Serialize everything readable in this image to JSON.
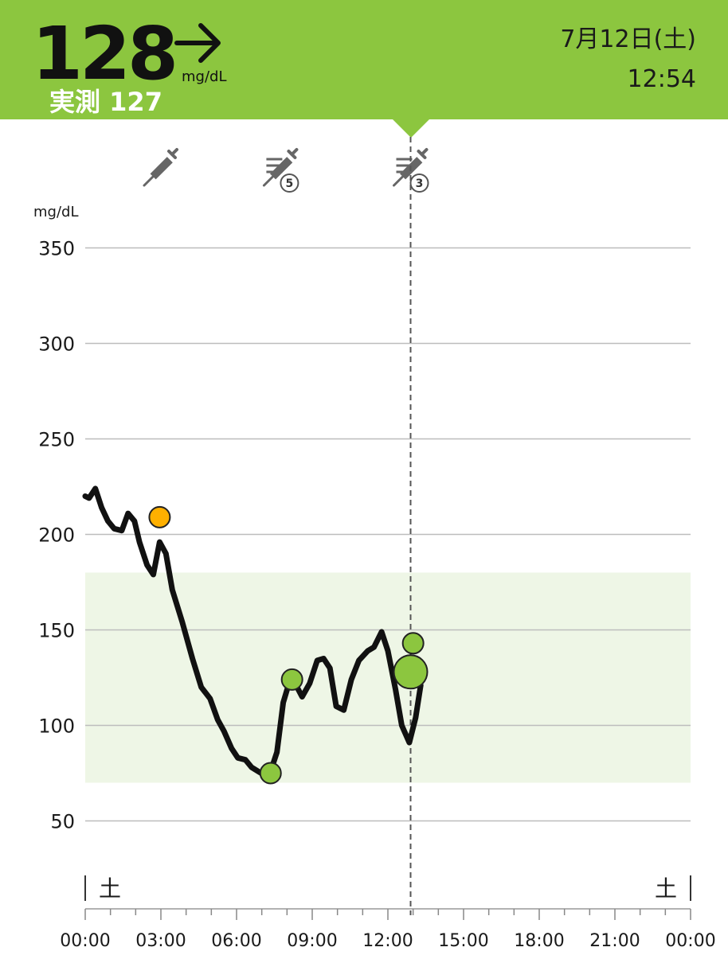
{
  "header": {
    "glucose_value": "128",
    "glucose_unit": "mg/dL",
    "trend_icon": "arrow-right-icon",
    "measured_label": "実測",
    "measured_value": "127",
    "date": "7月12日(土)",
    "time": "12:54",
    "background_color": "#8cc63f"
  },
  "chart_data": {
    "type": "line",
    "ylabel": "mg/dL",
    "ylim": [
      20,
      365
    ],
    "yticks": [
      50,
      100,
      150,
      200,
      250,
      300,
      350
    ],
    "x_ticks": [
      "00:00",
      "03:00",
      "06:00",
      "09:00",
      "12:00",
      "15:00",
      "18:00",
      "21:00",
      "00:00"
    ],
    "x_range_hours": [
      0,
      24
    ],
    "day_labels": {
      "start": "土",
      "end": "土"
    },
    "target_range": [
      70,
      180
    ],
    "target_range_color": "#eef6e6",
    "current_time_hours": 12.9,
    "series": [
      {
        "color": "#111111",
        "points": [
          [
            0.0,
            220
          ],
          [
            0.15,
            219
          ],
          [
            0.4,
            224
          ],
          [
            0.65,
            214
          ],
          [
            0.9,
            207
          ],
          [
            1.15,
            203
          ],
          [
            1.45,
            202
          ],
          [
            1.7,
            211
          ],
          [
            1.95,
            207
          ],
          [
            2.15,
            196
          ],
          [
            2.45,
            184
          ],
          [
            2.7,
            179
          ],
          [
            2.95,
            196
          ],
          [
            3.2,
            190
          ],
          [
            3.45,
            171
          ],
          [
            3.85,
            154
          ],
          [
            4.25,
            135
          ],
          [
            4.6,
            120
          ],
          [
            4.95,
            114
          ],
          [
            5.25,
            103
          ],
          [
            5.5,
            97
          ],
          [
            5.8,
            88
          ],
          [
            6.05,
            83
          ],
          [
            6.35,
            82
          ],
          [
            6.6,
            78
          ],
          [
            6.85,
            76
          ],
          [
            7.1,
            74
          ],
          [
            7.35,
            76
          ],
          [
            7.6,
            86
          ],
          [
            7.85,
            112
          ],
          [
            8.1,
            123
          ],
          [
            8.4,
            120
          ],
          [
            8.6,
            115
          ],
          [
            8.9,
            122
          ],
          [
            9.2,
            134
          ],
          [
            9.45,
            135
          ],
          [
            9.7,
            130
          ],
          [
            9.95,
            110
          ],
          [
            10.25,
            108
          ],
          [
            10.55,
            124
          ],
          [
            10.85,
            134
          ],
          [
            11.2,
            139
          ],
          [
            11.45,
            141
          ],
          [
            11.75,
            149
          ],
          [
            12.0,
            139
          ],
          [
            12.3,
            119
          ],
          [
            12.55,
            100
          ],
          [
            12.85,
            91
          ],
          [
            13.1,
            104
          ],
          [
            13.3,
            121
          ]
        ]
      }
    ],
    "markers": [
      {
        "x": 2.95,
        "y": 209,
        "color": "#ffb000",
        "size": "small"
      },
      {
        "x": 7.35,
        "y": 75,
        "color": "#8cc63f",
        "size": "small"
      },
      {
        "x": 8.2,
        "y": 124,
        "color": "#8cc63f",
        "size": "small"
      },
      {
        "x": 13.0,
        "y": 143,
        "color": "#8cc63f",
        "size": "small"
      },
      {
        "x": 12.9,
        "y": 128,
        "color": "#8cc63f",
        "size": "large"
      }
    ],
    "events": [
      {
        "x": 3.0,
        "icon": "syringe-icon",
        "badge": ""
      },
      {
        "x": 7.75,
        "icon": "pen-syringe-icon",
        "badge": "5"
      },
      {
        "x": 12.9,
        "icon": "pen-syringe-icon",
        "badge": "3"
      }
    ]
  }
}
